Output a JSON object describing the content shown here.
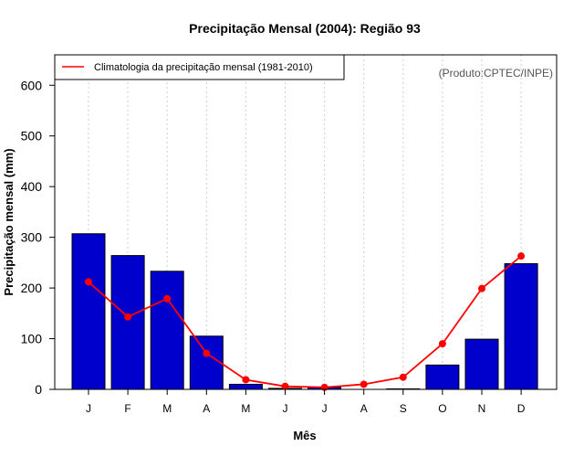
{
  "chart_data": {
    "type": "bar",
    "title": "Precipitação Mensal (2004): Região 93",
    "xlabel": "Mês",
    "ylabel": "Precipitação mensal (mm)",
    "categories": [
      "J",
      "F",
      "M",
      "A",
      "M",
      "J",
      "J",
      "A",
      "S",
      "O",
      "N",
      "D"
    ],
    "ylim": [
      0,
      660
    ],
    "yticks": [
      0,
      100,
      200,
      300,
      400,
      500,
      600
    ],
    "grid": "vertical dotted",
    "series": [
      {
        "name": "Precipitação mensal (2004)",
        "type": "bar",
        "color": "#0000cd",
        "values": [
          307,
          264,
          233,
          105,
          10,
          2,
          4,
          0,
          1,
          48,
          99,
          248
        ]
      },
      {
        "name": "Climatologia da precipitação mensal (1981-2010)",
        "type": "line",
        "color": "#ff0000",
        "values": [
          212,
          143,
          179,
          71,
          19,
          6,
          4,
          10,
          24,
          90,
          199,
          263
        ]
      }
    ],
    "legend": {
      "position": "top-left",
      "entries": [
        "Climatologia da precipitação mensal (1981-2010)"
      ]
    },
    "annotation": "(Produto:CPTEC/INPE)"
  }
}
